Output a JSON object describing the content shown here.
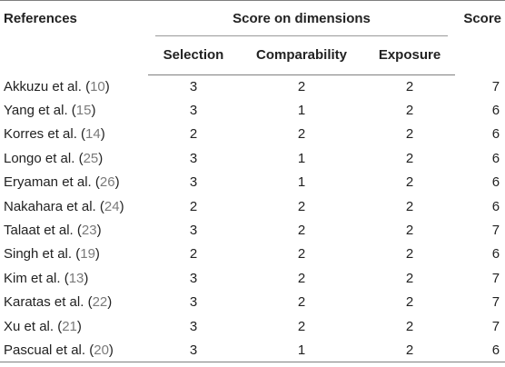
{
  "table": {
    "headers": {
      "references": "References",
      "score_on_dimensions": "Score on dimensions",
      "score": "Score",
      "selection": "Selection",
      "comparability": "Comparability",
      "exposure": "Exposure"
    },
    "rows": [
      {
        "name": "Akkuzu et al.",
        "ref": "10",
        "selection": "3",
        "comparability": "2",
        "exposure": "2",
        "score": "7"
      },
      {
        "name": "Yang et al.",
        "ref": "15",
        "selection": "3",
        "comparability": "1",
        "exposure": "2",
        "score": "6"
      },
      {
        "name": "Korres et al.",
        "ref": "14",
        "selection": "2",
        "comparability": "2",
        "exposure": "2",
        "score": "6"
      },
      {
        "name": "Longo et al.",
        "ref": "25",
        "selection": "3",
        "comparability": "1",
        "exposure": "2",
        "score": "6"
      },
      {
        "name": "Eryaman et al.",
        "ref": "26",
        "selection": "3",
        "comparability": "1",
        "exposure": "2",
        "score": "6"
      },
      {
        "name": "Nakahara et al.",
        "ref": "24",
        "selection": "2",
        "comparability": "2",
        "exposure": "2",
        "score": "6"
      },
      {
        "name": "Talaat et al.",
        "ref": "23",
        "selection": "3",
        "comparability": "2",
        "exposure": "2",
        "score": "7"
      },
      {
        "name": "Singh et al.",
        "ref": "19",
        "selection": "2",
        "comparability": "2",
        "exposure": "2",
        "score": "6"
      },
      {
        "name": "Kim et al.",
        "ref": "13",
        "selection": "3",
        "comparability": "2",
        "exposure": "2",
        "score": "7"
      },
      {
        "name": "Karatas et al.",
        "ref": "22",
        "selection": "3",
        "comparability": "2",
        "exposure": "2",
        "score": "7"
      },
      {
        "name": "Xu et al.",
        "ref": "21",
        "selection": "3",
        "comparability": "2",
        "exposure": "2",
        "score": "7"
      },
      {
        "name": "Pascual et al.",
        "ref": "20",
        "selection": "3",
        "comparability": "1",
        "exposure": "2",
        "score": "6"
      }
    ]
  }
}
